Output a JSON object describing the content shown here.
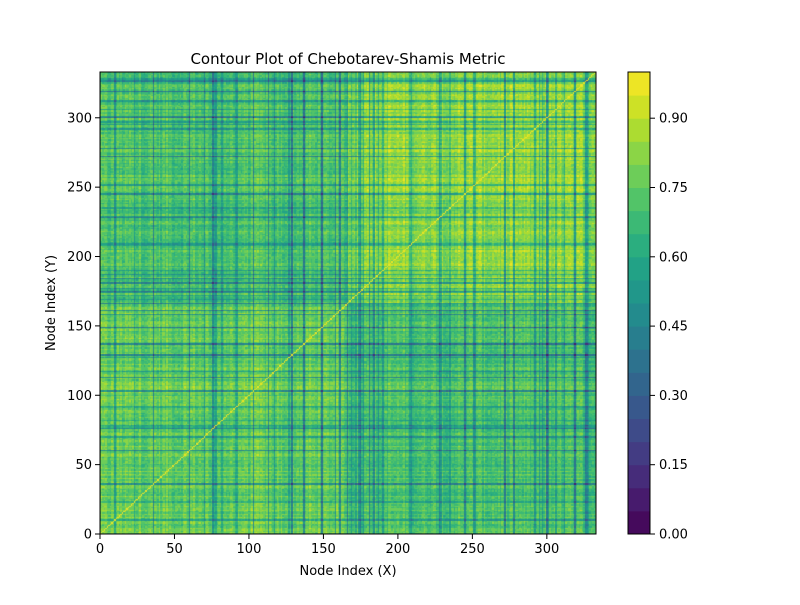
{
  "chart_data": {
    "type": "heatmap",
    "title": "Contour Plot of Chebotarev-Shamis Metric",
    "xlabel": "Node Index (X)",
    "ylabel": "Node Index (Y)",
    "xlim": [
      0,
      333
    ],
    "ylim": [
      0,
      333
    ],
    "node_count": 334,
    "xticks": [
      {
        "value": 0,
        "label": "0"
      },
      {
        "value": 50,
        "label": "50"
      },
      {
        "value": 100,
        "label": "100"
      },
      {
        "value": 150,
        "label": "150"
      },
      {
        "value": 200,
        "label": "200"
      },
      {
        "value": 250,
        "label": "250"
      },
      {
        "value": 300,
        "label": "300"
      }
    ],
    "yticks": [
      {
        "value": 0,
        "label": "0"
      },
      {
        "value": 50,
        "label": "50"
      },
      {
        "value": 100,
        "label": "100"
      },
      {
        "value": 150,
        "label": "150"
      },
      {
        "value": 200,
        "label": "200"
      },
      {
        "value": 250,
        "label": "250"
      },
      {
        "value": 300,
        "label": "300"
      }
    ],
    "diagonal_value": 1.0,
    "clusters": [
      {
        "range": [
          0,
          165
        ],
        "mean": 0.76
      },
      {
        "range": [
          166,
          333
        ],
        "mean": 0.83
      }
    ],
    "between_cluster_mean": 0.71,
    "colorbar": {
      "vmin": 0.0,
      "vmax": 1.0,
      "levels": [
        0.0,
        0.05,
        0.1,
        0.15,
        0.2,
        0.25,
        0.3,
        0.35,
        0.4,
        0.45,
        0.5,
        0.55,
        0.6,
        0.65,
        0.7,
        0.75,
        0.8,
        0.85,
        0.9,
        0.95,
        1.0
      ],
      "ticks": [
        {
          "value": 0.0,
          "label": "0.00"
        },
        {
          "value": 0.15,
          "label": "0.15"
        },
        {
          "value": 0.3,
          "label": "0.30"
        },
        {
          "value": 0.45,
          "label": "0.45"
        },
        {
          "value": 0.6,
          "label": "0.60"
        },
        {
          "value": 0.75,
          "label": "0.75"
        },
        {
          "value": 0.9,
          "label": "0.90"
        }
      ],
      "colormap": "viridis"
    }
  }
}
